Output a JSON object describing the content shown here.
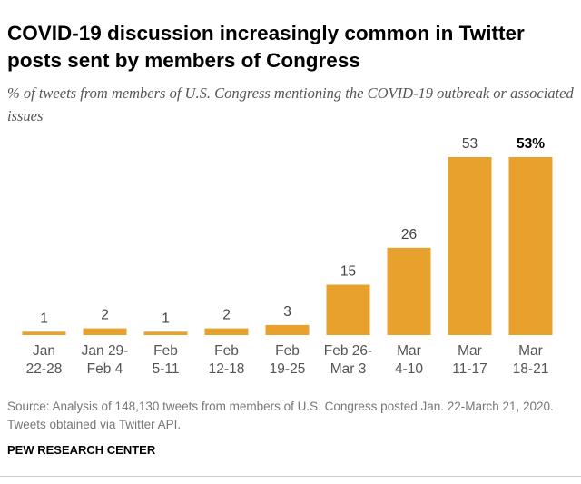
{
  "chart_data": {
    "type": "bar",
    "title": "COVID-19 discussion increasingly common in Twitter posts sent by members of Congress",
    "subtitle": "% of tweets from members of U.S. Congress mentioning the COVID-19 outbreak or associated issues",
    "categories": [
      [
        "Jan",
        "22-28"
      ],
      [
        "Jan 29-",
        "Feb 4"
      ],
      [
        "Feb",
        "5-11"
      ],
      [
        "Feb",
        "12-18"
      ],
      [
        "Feb",
        "19-25"
      ],
      [
        "Feb 26-",
        "Mar 3"
      ],
      [
        "Mar",
        "4-10"
      ],
      [
        "Mar",
        "11-17"
      ],
      [
        "Mar",
        "18-21"
      ]
    ],
    "values": [
      1,
      2,
      1,
      2,
      3,
      15,
      26,
      53,
      53
    ],
    "value_labels": [
      "1",
      "2",
      "1",
      "2",
      "3",
      "15",
      "26",
      "53",
      "53%"
    ],
    "color": "#e9a12e",
    "source": "Source: Analysis of 148,130 tweets from members of U.S. Congress posted Jan. 22-March 21, 2020. Tweets obtained via Twitter API.",
    "brand": "PEW RESEARCH CENTER"
  }
}
